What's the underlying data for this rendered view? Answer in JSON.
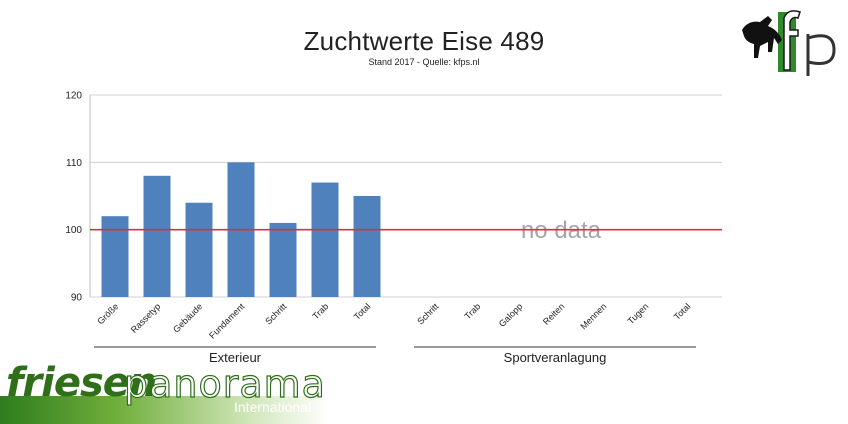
{
  "chart_data": {
    "type": "bar",
    "title": "Zuchtwerte Eise 489",
    "subtitle": "Stand 2017 - Quelle: kfps.nl",
    "ylim": [
      90,
      120
    ],
    "yticks": [
      90,
      100,
      110,
      120
    ],
    "reference_line": 100,
    "reference_color": "#e03030",
    "bar_color": "#4f81bd",
    "grid": true,
    "groups": [
      {
        "label": "Exterieur",
        "categories": [
          "Größe",
          "Rassetyp",
          "Gebäude",
          "Fundament",
          "Schritt",
          "Trab",
          "Total"
        ],
        "values": [
          102,
          108,
          104,
          110,
          101,
          107,
          105
        ]
      },
      {
        "label": "Sportveranlagung",
        "categories": [
          "Schritt",
          "Trab",
          "Galopp",
          "Reiten",
          "Mennen",
          "Tugen",
          "Total"
        ],
        "values": [],
        "note": "no data"
      }
    ]
  },
  "logos": {
    "kfp": "kfp",
    "brand_main_a": "friesen",
    "brand_main_b": "panorama",
    "brand_sub": "International"
  },
  "colors": {
    "logo_green": "#2f6f1a",
    "grid": "#d0d0d0",
    "axis_text": "#222222"
  }
}
